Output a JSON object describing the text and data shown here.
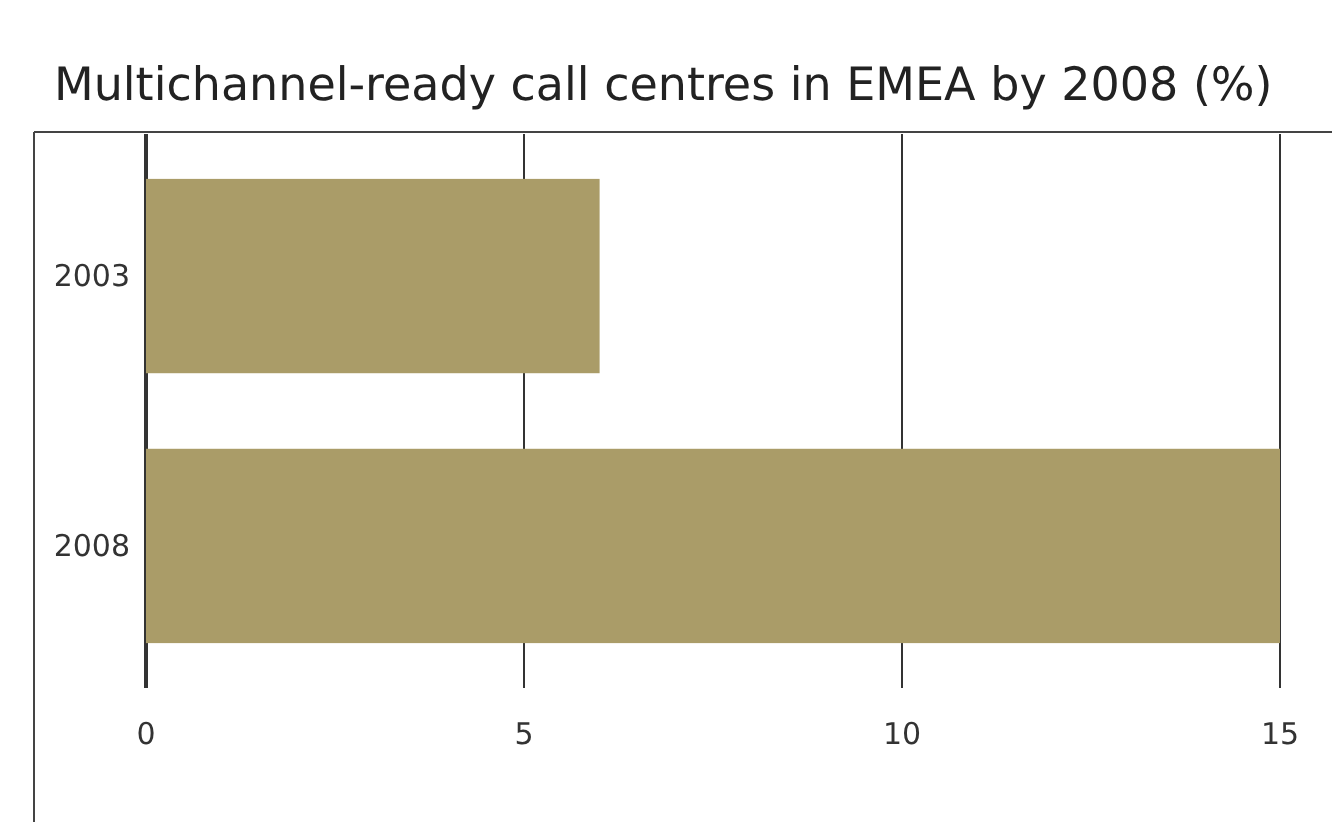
{
  "chart_data": {
    "type": "bar",
    "orientation": "horizontal",
    "title": "Multichannel-ready call centres in EMEA by 2008 (%)",
    "categories": [
      "2003",
      "2008"
    ],
    "values": [
      6,
      15
    ],
    "color": "#aa9c68",
    "xlim": [
      0,
      15
    ],
    "xticks": [
      0,
      5,
      10,
      15
    ],
    "grid": "x"
  }
}
